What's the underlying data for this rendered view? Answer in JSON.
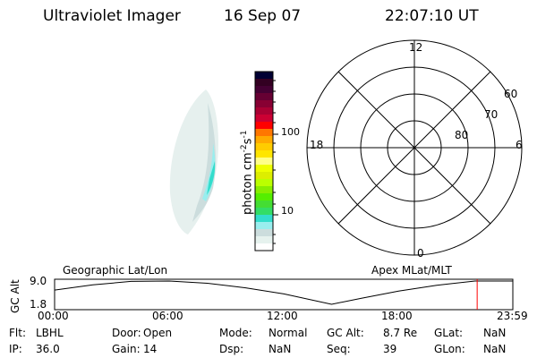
{
  "header": {
    "instrument": "Ultraviolet Imager",
    "date": "16 Sep 07",
    "time": "22:07:10 UT"
  },
  "colorbar": {
    "label": "photon cm",
    "exp1": "-2",
    "s": "s",
    "exp2": "-1",
    "ticks": [
      "100",
      "10"
    ],
    "colors": [
      "#000033",
      "#330022",
      "#440033",
      "#660033",
      "#880033",
      "#aa0033",
      "#cc0033",
      "#ff0000",
      "#ff7700",
      "#ffaa00",
      "#ffcc00",
      "#ffe600",
      "#ffff88",
      "#eeff00",
      "#ddee00",
      "#bbff00",
      "#88ee00",
      "#55ee00",
      "#44dd33",
      "#33dd66",
      "#33ddcc",
      "#99eeee",
      "#ccdddd",
      "#e6f2ee",
      "#ffffff"
    ]
  },
  "polar": {
    "mlt_labels": {
      "top": "12",
      "bottom": "0",
      "left": "18",
      "right": "6"
    },
    "lat_labels": [
      "60",
      "70",
      "80"
    ]
  },
  "altplot": {
    "left_label": "Geographic Lat/Lon",
    "right_label": "Apex MLat/MLT",
    "ylabel": "GC Alt",
    "yticks": [
      "9.0",
      "1.8"
    ],
    "xticks": [
      "00:00",
      "06:00",
      "12:00",
      "18:00",
      "23:59"
    ],
    "marker_color": "#ff0000"
  },
  "chart_data": {
    "type": "line",
    "xlabel": "",
    "ylabel": "GC Alt",
    "ylim": [
      1.8,
      9.0
    ],
    "x": [
      "00:00",
      "02:00",
      "04:00",
      "06:00",
      "08:00",
      "10:00",
      "12:00",
      "14:30",
      "16:00",
      "18:00",
      "20:00",
      "22:00",
      "23:59"
    ],
    "series": [
      {
        "values": [
          6.2,
          7.8,
          8.9,
          9.0,
          8.3,
          6.9,
          5.0,
          1.8,
          3.6,
          5.9,
          7.7,
          9.0,
          9.0
        ]
      }
    ],
    "current_time": "22:07"
  },
  "status": {
    "rows": [
      [
        {
          "k": "Flt:",
          "v": "LBHL"
        },
        {
          "k": "Door:",
          "v": "Open"
        },
        {
          "k": "Mode:",
          "v": "Normal"
        },
        {
          "k": "GC Alt:",
          "v": "8.7 Re"
        },
        {
          "k": "GLat:",
          "v": "NaN"
        }
      ],
      [
        {
          "k": "IP:",
          "v": "36.0"
        },
        {
          "k": "Gain:",
          "v": "14"
        },
        {
          "k": "Dsp:",
          "v": "NaN"
        },
        {
          "k": "Seq:",
          "v": "39"
        },
        {
          "k": "GLon:",
          "v": "NaN"
        }
      ]
    ]
  }
}
